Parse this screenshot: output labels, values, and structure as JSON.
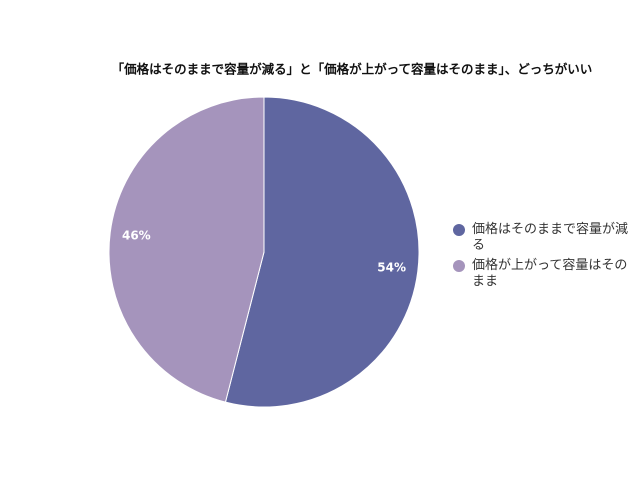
{
  "chart_data": {
    "type": "pie",
    "title": "「価格はそのままで容量が減る」と「価格が上がって容量はそのまま」、どっちがいい",
    "categories": [
      "価格はそのままで容量が減る",
      "価格が上がって容量はそのまま"
    ],
    "values": [
      54,
      46
    ],
    "value_labels": [
      "54%",
      "46%"
    ],
    "colors": [
      "#5f66a0",
      "#a594bc"
    ],
    "legend": "right"
  }
}
